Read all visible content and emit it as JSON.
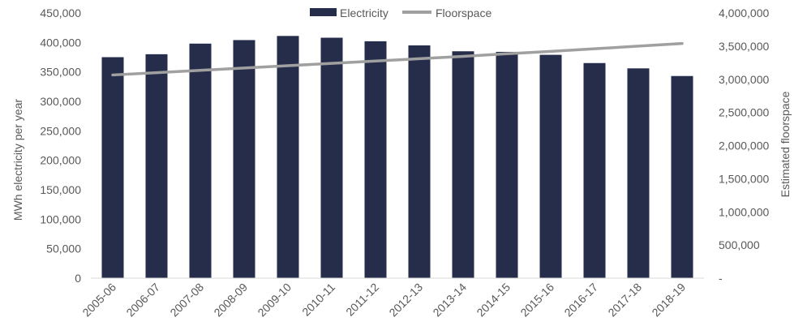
{
  "chart_data": {
    "type": "bar",
    "categories": [
      "2005-06",
      "2006-07",
      "2007-08",
      "2008-09",
      "2009-10",
      "2010-11",
      "2011-12",
      "2012-13",
      "2013-14",
      "2014-15",
      "2015-16",
      "2016-17",
      "2017-18",
      "2018-19"
    ],
    "series": [
      {
        "name": "Electricity",
        "type": "bar",
        "axis": "left",
        "color": "#262D4A",
        "values": [
          375000,
          380000,
          398000,
          404000,
          411000,
          408000,
          402000,
          395000,
          385000,
          384000,
          379000,
          365000,
          356000,
          343000
        ]
      },
      {
        "name": "Floorspace",
        "type": "line",
        "axis": "right",
        "color": "#A0A0A0",
        "values": [
          3065000,
          3100000,
          3135000,
          3170000,
          3205000,
          3240000,
          3275000,
          3310000,
          3345000,
          3385000,
          3420000,
          3460000,
          3500000,
          3540000
        ]
      }
    ],
    "ylabel": "MWh electricity per year",
    "ylabel_right": "Estimated floorspace",
    "ylim": [
      0,
      450000
    ],
    "ylim_right": [
      0,
      4000000
    ],
    "yticks": [
      "0",
      "50,000",
      "100,000",
      "150,000",
      "200,000",
      "250,000",
      "300,000",
      "350,000",
      "400,000",
      "450,000"
    ],
    "yticks_right": [
      "-",
      "500,000",
      "1,000,000",
      "1,500,000",
      "2,000,000",
      "2,500,000",
      "3,000,000",
      "3,500,000",
      "4,000,000"
    ],
    "grid": false,
    "legend_position": "top-center"
  }
}
